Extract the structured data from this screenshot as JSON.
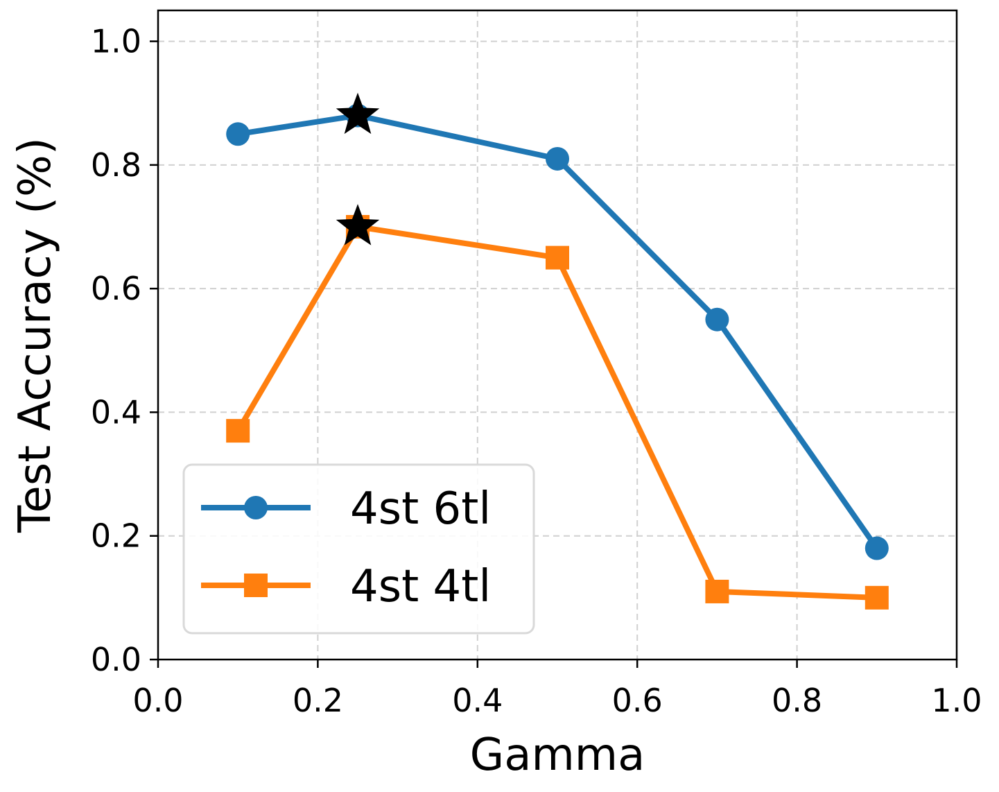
{
  "chart_data": {
    "type": "line",
    "title": "",
    "xlabel": "Gamma",
    "ylabel": "Test Accuracy (%)",
    "xlim": [
      0.0,
      1.0
    ],
    "ylim": [
      0.0,
      1.05
    ],
    "xticks": [
      "0.0",
      "0.2",
      "0.4",
      "0.6",
      "0.8",
      "1.0"
    ],
    "yticks": [
      "0.0",
      "0.2",
      "0.4",
      "0.6",
      "0.8",
      "1.0"
    ],
    "grid": true,
    "legend_position": "lower-left",
    "series": [
      {
        "name": "4st 6tl",
        "color": "#1f77b4",
        "marker": "circle",
        "x": [
          0.1,
          0.25,
          0.5,
          0.7,
          0.9
        ],
        "y": [
          0.85,
          0.88,
          0.81,
          0.55,
          0.18
        ]
      },
      {
        "name": "4st 4tl",
        "color": "#ff7f0e",
        "marker": "square",
        "x": [
          0.1,
          0.25,
          0.5,
          0.7,
          0.9
        ],
        "y": [
          0.37,
          0.7,
          0.65,
          0.11,
          0.1
        ]
      }
    ],
    "highlights": [
      {
        "series": "4st 6tl",
        "x": 0.25,
        "y": 0.88,
        "marker": "star",
        "color": "#000000"
      },
      {
        "series": "4st 4tl",
        "x": 0.25,
        "y": 0.7,
        "marker": "star",
        "color": "#000000"
      }
    ]
  }
}
